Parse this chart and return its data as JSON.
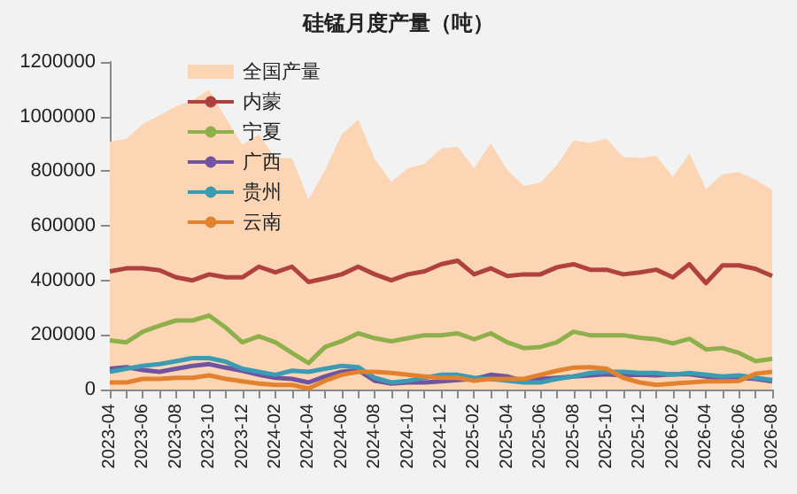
{
  "chart_data": {
    "type": "line",
    "title": "硅锰月度产量（吨）",
    "categories": [
      "2023-04",
      null,
      "2023-06",
      null,
      "2023-08",
      null,
      "2023-10",
      null,
      "2023-12",
      null,
      "2024-02",
      null,
      "2024-04",
      null,
      "2024-06",
      null,
      "2024-08",
      null,
      "2024-10",
      null,
      "2024-12",
      null,
      "2025-02",
      null,
      "2025-04",
      null,
      "2025-06",
      null,
      "2025-08",
      null,
      "2025-10",
      null,
      "2025-12",
      null,
      "2026-02",
      null,
      "2026-04",
      null,
      "2026-06",
      null,
      "2026-08"
    ],
    "series": [
      {
        "name": "全国产量",
        "type": "area",
        "color": "#fcd5b4",
        "values": [
          908000,
          919000,
          973000,
          1005000,
          1038000,
          1060000,
          1098000,
          995000,
          897000,
          934000,
          848000,
          848000,
          696000,
          804000,
          934000,
          990000,
          843000,
          761000,
          811000,
          826000,
          882000,
          890000,
          811000,
          902000,
          804000,
          746000,
          757000,
          822000,
          912000,
          904000,
          919000,
          852000,
          848000,
          856000,
          778000,
          865000,
          735000,
          789000,
          796000,
          768000,
          731000
        ]
      },
      {
        "name": "内蒙",
        "color": "#b0413e",
        "values": [
          433000,
          444000,
          444000,
          437000,
          411000,
          400000,
          422000,
          411000,
          411000,
          450000,
          429000,
          450000,
          394000,
          407000,
          422000,
          450000,
          422000,
          400000,
          422000,
          433000,
          459000,
          472000,
          422000,
          444000,
          416000,
          422000,
          422000,
          448000,
          459000,
          439000,
          439000,
          422000,
          429000,
          439000,
          411000,
          459000,
          390000,
          455000,
          455000,
          442000,
          416000
        ]
      },
      {
        "name": "宁夏",
        "color": "#8db04a",
        "values": [
          180000,
          173000,
          212000,
          234000,
          253000,
          253000,
          271000,
          227000,
          173000,
          195000,
          173000,
          134000,
          97000,
          156000,
          177000,
          206000,
          188000,
          177000,
          188000,
          199000,
          199000,
          206000,
          184000,
          206000,
          173000,
          152000,
          156000,
          173000,
          212000,
          199000,
          199000,
          199000,
          190000,
          184000,
          169000,
          186000,
          147000,
          152000,
          134000,
          104000,
          113000
        ]
      },
      {
        "name": "广西",
        "color": "#7054a0",
        "values": [
          76000,
          82000,
          71000,
          65000,
          76000,
          87000,
          93000,
          80000,
          69000,
          54000,
          43000,
          39000,
          26000,
          48000,
          65000,
          71000,
          32000,
          22000,
          26000,
          26000,
          30000,
          35000,
          39000,
          54000,
          48000,
          30000,
          39000,
          43000,
          48000,
          52000,
          56000,
          52000,
          54000,
          52000,
          56000,
          56000,
          48000,
          39000,
          43000,
          39000,
          30000
        ]
      },
      {
        "name": "贵州",
        "color": "#3b9bb3",
        "values": [
          65000,
          76000,
          87000,
          93000,
          104000,
          115000,
          115000,
          102000,
          76000,
          65000,
          54000,
          69000,
          65000,
          76000,
          87000,
          82000,
          43000,
          26000,
          32000,
          43000,
          54000,
          54000,
          43000,
          39000,
          32000,
          26000,
          26000,
          39000,
          48000,
          61000,
          65000,
          65000,
          61000,
          61000,
          54000,
          61000,
          54000,
          48000,
          52000,
          43000,
          35000
        ]
      },
      {
        "name": "云南",
        "color": "#e2822f",
        "values": [
          26000,
          26000,
          39000,
          39000,
          43000,
          43000,
          52000,
          39000,
          30000,
          22000,
          17000,
          17000,
          4000,
          32000,
          54000,
          65000,
          65000,
          61000,
          54000,
          48000,
          43000,
          43000,
          32000,
          39000,
          39000,
          39000,
          54000,
          69000,
          80000,
          82000,
          76000,
          43000,
          26000,
          17000,
          22000,
          26000,
          30000,
          30000,
          32000,
          58000,
          65000
        ]
      }
    ],
    "ylim": [
      0,
      1200000
    ],
    "yticks": [
      0,
      200000,
      400000,
      600000,
      800000,
      1000000,
      1200000
    ],
    "grid": false,
    "legend": "top left",
    "marker": "none",
    "line_style": "solid"
  }
}
